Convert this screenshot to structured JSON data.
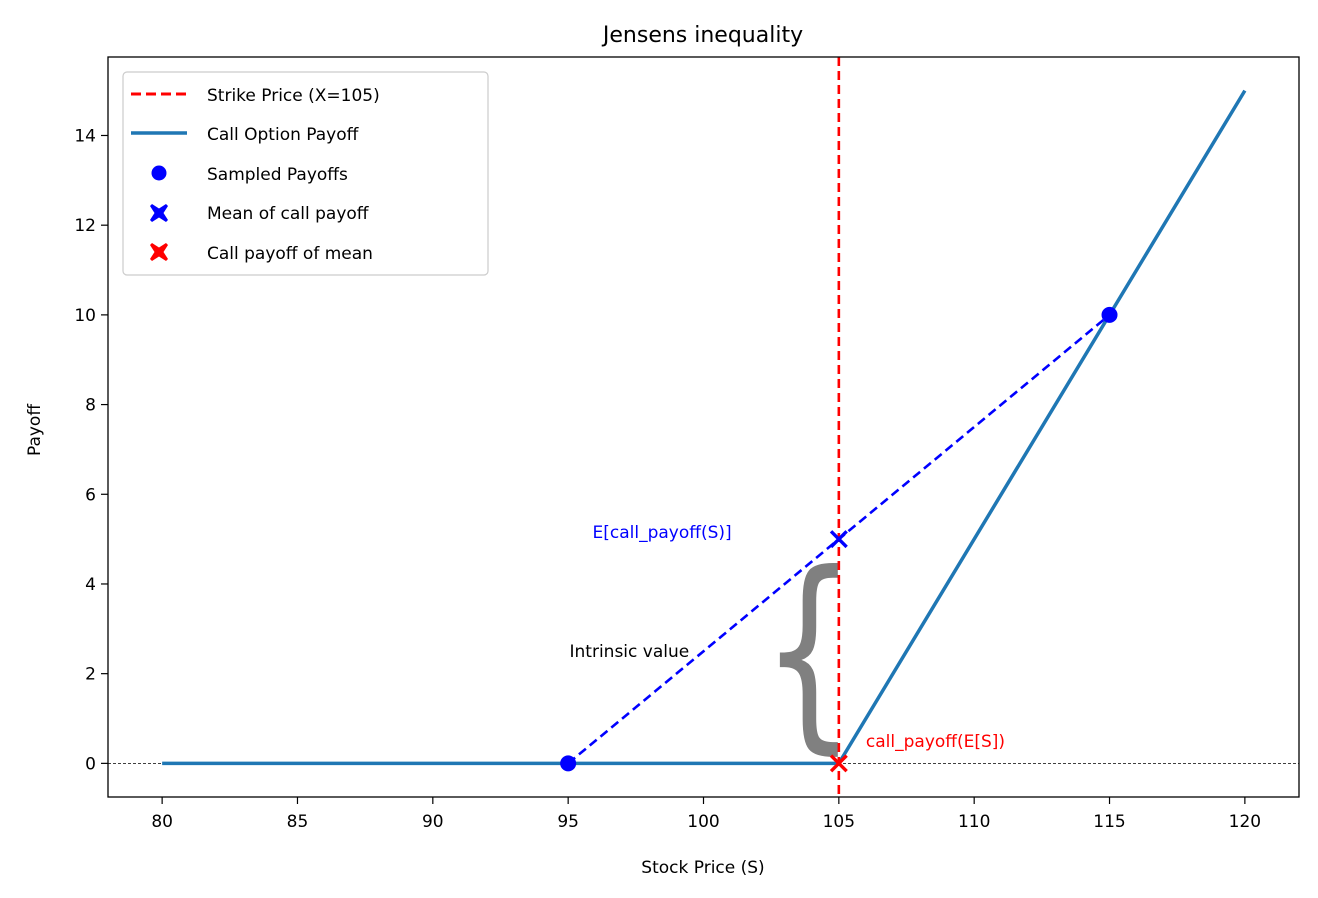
{
  "chart_data": {
    "type": "line",
    "title": "Jensens inequality",
    "xlabel": "Stock Price (S)",
    "ylabel": "Payoff",
    "xlim": [
      78,
      122
    ],
    "ylim": [
      -0.75,
      15.75
    ],
    "xticks": [
      80,
      85,
      90,
      95,
      100,
      105,
      110,
      115,
      120
    ],
    "yticks": [
      0,
      2,
      4,
      6,
      8,
      10,
      12,
      14
    ],
    "strike": 105,
    "legend_position": "upper-left",
    "legend": {
      "strike": "Strike Price (X=105)",
      "payoff": "Call Option Payoff",
      "sampled": "Sampled Payoffs",
      "mean_payoff": "Mean of call payoff",
      "payoff_of_mean": "Call payoff of mean"
    },
    "series": [
      {
        "name": "Call Option Payoff",
        "style": "solid",
        "color": "#1f77b4",
        "x": [
          80,
          105,
          120
        ],
        "y": [
          0,
          0,
          15
        ]
      },
      {
        "name": "Sampled Payoffs",
        "style": "markers",
        "color": "#0000ff",
        "x": [
          95,
          115
        ],
        "y": [
          0,
          10
        ]
      },
      {
        "name": "Mean of call payoff",
        "style": "x-marker",
        "color": "#0000ff",
        "x": [
          105
        ],
        "y": [
          5
        ]
      },
      {
        "name": "Call payoff of mean",
        "style": "x-marker",
        "color": "#ff0000",
        "x": [
          105
        ],
        "y": [
          0
        ]
      }
    ],
    "chord": {
      "x": [
        95,
        115
      ],
      "y": [
        0,
        10
      ],
      "color": "#0000ff",
      "style": "dashed"
    },
    "zero_line": {
      "y": 0,
      "style": "dashed"
    },
    "annotations": {
      "mean_label": "E[call_payoff(S)]",
      "mean_label_color": "#0000ff",
      "payoff_of_mean_label": "call_payoff(E[S])",
      "payoff_of_mean_label_color": "#ff0000",
      "brace_glyph": "{",
      "brace_color": "#808080",
      "intrinsic_label": "Intrinsic value"
    },
    "colors": {
      "strike": "#ff0000",
      "payoff": "#1f77b4",
      "sampled": "#0000ff"
    }
  }
}
